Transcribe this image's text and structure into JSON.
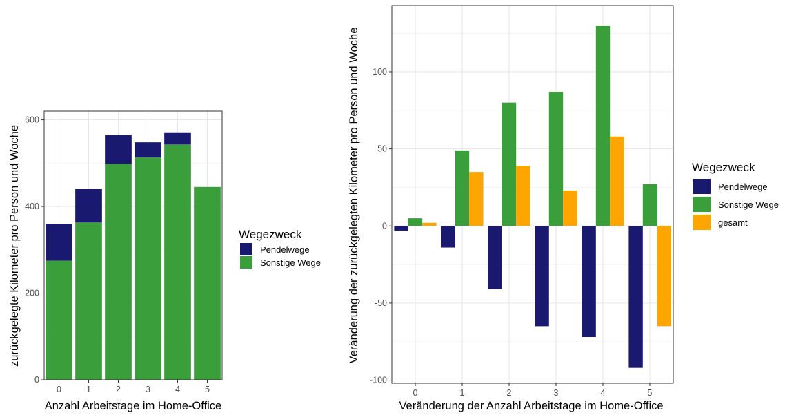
{
  "colors": {
    "Pendelwege": "#191970",
    "Sonstige Wege": "#3a9e3a",
    "gesamt": "#ffa500"
  },
  "chart_data": [
    {
      "type": "bar",
      "stacked": true,
      "xlabel": "Anzahl Arbeitstage im Home-Office",
      "ylabel": "zurückgelegte Kilometer pro Person und Woche",
      "categories": [
        "0",
        "1",
        "2",
        "3",
        "4",
        "5"
      ],
      "ylim": [
        0,
        620
      ],
      "yticks": [
        0,
        200,
        400,
        600
      ],
      "legend_title": "Wegezweck",
      "series": [
        {
          "name": "Pendelwege",
          "values": [
            85,
            78,
            67,
            35,
            28,
            0
          ]
        },
        {
          "name": "Sonstige Wege",
          "values": [
            275,
            363,
            498,
            513,
            543,
            445
          ]
        }
      ]
    },
    {
      "type": "bar",
      "stacked": false,
      "xlabel": "Veränderung der Anzahl Arbeitstage im Home-Office",
      "ylabel": "Veränderung der zurückgelegten Kilometer pro Person und Woche",
      "categories": [
        "0",
        "1",
        "2",
        "3",
        "4",
        "5"
      ],
      "ylim": [
        -102,
        143
      ],
      "yticks": [
        -100,
        -50,
        0,
        50,
        100
      ],
      "legend_title": "Wegezweck",
      "series": [
        {
          "name": "Pendelwege",
          "values": [
            -3,
            -14,
            -41,
            -65,
            -72,
            -92
          ]
        },
        {
          "name": "Sonstige Wege",
          "values": [
            5,
            49,
            80,
            87,
            130,
            27
          ]
        },
        {
          "name": "gesamt",
          "values": [
            2,
            35,
            39,
            23,
            58,
            -65
          ]
        }
      ]
    }
  ]
}
